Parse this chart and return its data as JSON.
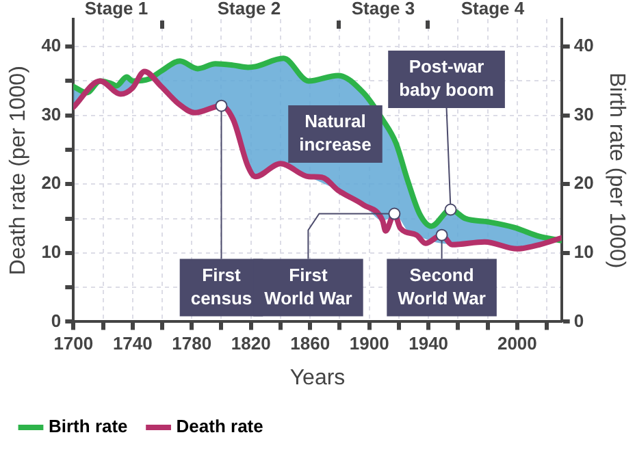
{
  "chart_data": {
    "type": "line",
    "xlabel": "Years",
    "ylabel": "Death rate (per 1000)",
    "y2label": "Birth rate (per 1000)",
    "xlim": [
      1700,
      2030
    ],
    "xticks": [
      1700,
      {
        "value": 1720,
        "label": null
      },
      1740,
      {
        "value": 1760,
        "label": null
      },
      1780,
      {
        "value": 1800,
        "label": null
      },
      1820,
      {
        "value": 1840,
        "label": null
      },
      1860,
      {
        "value": 1880,
        "label": null
      },
      1900,
      {
        "value": 1920,
        "label": null
      },
      1940,
      {
        "value": 1960,
        "label": null
      },
      {
        "value": 1980,
        "label": null
      },
      2000,
      {
        "value": 2020,
        "label": null
      }
    ],
    "ylim": [
      0,
      44
    ],
    "yticks": [
      0,
      {
        "value": 5,
        "label": null
      },
      10,
      {
        "value": 15,
        "label": null
      },
      20,
      {
        "value": 25,
        "label": null
      },
      30,
      {
        "value": 35,
        "label": null
      },
      40
    ],
    "y2lim": [
      0,
      44
    ],
    "y2ticks": [
      0,
      10,
      20,
      30,
      40
    ],
    "grid": true,
    "legend": "bottom",
    "marker": "none",
    "line_style": "solid",
    "series": [
      {
        "name": "Birth rate",
        "color": "#2db34a",
        "x": [
          1700,
          1709,
          1718,
          1726,
          1729,
          1736,
          1740,
          1751,
          1759,
          1772,
          1784,
          1796,
          1808,
          1818,
          1823,
          1842,
          1859,
          1879,
          1896,
          1909,
          1918,
          1926,
          1934,
          1942,
          1955,
          1965,
          1981,
          1998,
          2015,
          2030
        ],
        "values": [
          34.2,
          33.3,
          35,
          34.6,
          34.3,
          35.6,
          35,
          35.3,
          36.4,
          37.9,
          36.8,
          37.5,
          37.3,
          37,
          37.1,
          38.3,
          35,
          35.8,
          33.3,
          29.4,
          26,
          20.5,
          15.7,
          13.9,
          16.3,
          15,
          14.5,
          13.7,
          12.4,
          11.8
        ],
        "upper": [
          34.2,
          33.3,
          35,
          34.6,
          34.3,
          35.6,
          35,
          35.3,
          36.4,
          37.9,
          36.8,
          37.5,
          37.3,
          37,
          37.1,
          38.3,
          35,
          35.8,
          33.3,
          29.4,
          26,
          20.5,
          15.7,
          13.9,
          16.3,
          15,
          14.5,
          13.7,
          12.4,
          11.8
        ],
        "lower": [
          31.2,
          33.3,
          35,
          33.8,
          33.2,
          33.3,
          34,
          35.3,
          34.3,
          31.6,
          30.4,
          31,
          29.4,
          22.6,
          21.1,
          23,
          21.1,
          19.1,
          17,
          14.7,
          15.4,
          13.2,
          12.4,
          11.7,
          11.3,
          11.4,
          11.5,
          10.7,
          11.2,
          11.8
        ]
      },
      {
        "name": "Death rate",
        "color": "#b5316a",
        "x": [
          1700,
          1718,
          1732,
          1740,
          1748,
          1759,
          1771,
          1782,
          1800,
          1808,
          1818,
          1823,
          1840,
          1859,
          1868,
          1879,
          1896,
          1909,
          1911,
          1917,
          1921,
          1932,
          1938,
          1949,
          1956,
          1978,
          2000,
          2015,
          2030
        ],
        "values": [
          31.2,
          35,
          33.1,
          34,
          36.4,
          34.3,
          31.7,
          30.4,
          31.4,
          29.4,
          22.6,
          21.1,
          23,
          21.1,
          21,
          19.1,
          17,
          14.7,
          13.2,
          15.7,
          13.6,
          12.6,
          11.4,
          12.6,
          11.2,
          11.6,
          10.6,
          11.2,
          12.2
        ]
      }
    ],
    "annotations": [
      "Stage 1",
      "Stage 2",
      "Stage 3",
      "Stage 4",
      "Natural increase",
      {
        "text": "First census",
        "x": 1800,
        "y": 31.4
      },
      {
        "text": "First World War",
        "x": 1917,
        "y": 15.7
      },
      {
        "text": "Second World War",
        "x": 1949,
        "y": 12.6
      },
      {
        "text": "Post-war baby boom",
        "x": 1955,
        "y": 16.3
      }
    ]
  }
}
